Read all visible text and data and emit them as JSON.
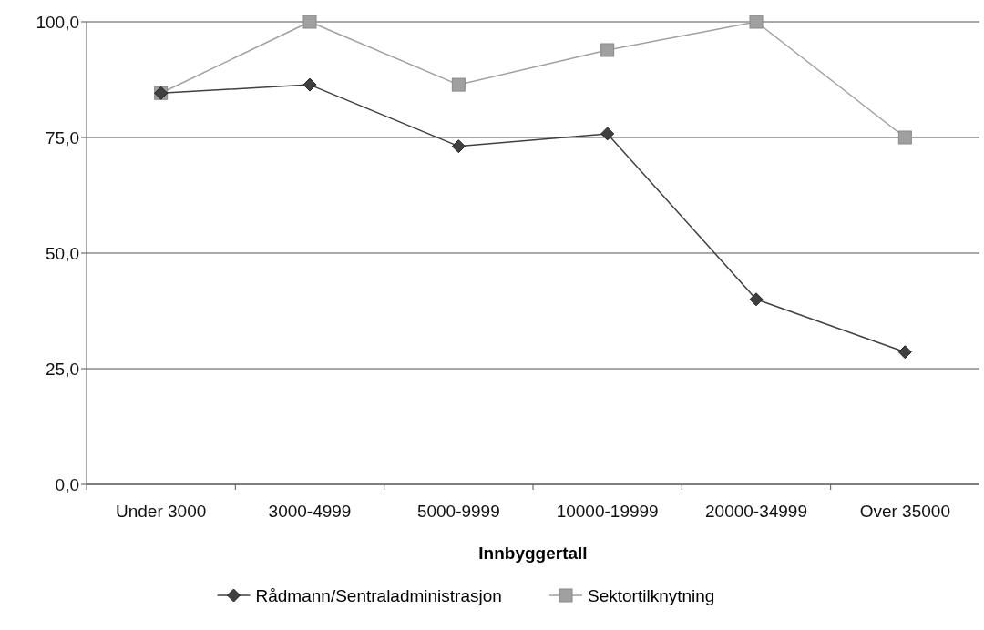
{
  "chart_data": {
    "type": "line",
    "xlabel": "Innbyggertall",
    "categories": [
      "Under 3000",
      "3000-4999",
      "5000-9999",
      "10000-19999",
      "20000-34999",
      "Over 35000"
    ],
    "series": [
      {
        "name": "Rådmann/Sentraladministrasjon",
        "color": "#404040",
        "marker": "diamond",
        "values": [
          84.6,
          86.4,
          73.1,
          75.8,
          40.0,
          28.6
        ]
      },
      {
        "name": "Sektortilknytning",
        "color": "#a0a0a0",
        "marker": "square",
        "values": [
          84.6,
          100.0,
          86.4,
          93.9,
          100.0,
          75.0
        ]
      }
    ],
    "ylim": [
      0,
      100
    ],
    "yticks": [
      {
        "value": 0,
        "label": "0,0"
      },
      {
        "value": 25,
        "label": "25,0"
      },
      {
        "value": 50,
        "label": "50,0"
      },
      {
        "value": 75,
        "label": "75,0"
      },
      {
        "value": 100,
        "label": "100,0"
      }
    ],
    "grid": "y",
    "legend": "bottom",
    "line_style": "solid"
  }
}
